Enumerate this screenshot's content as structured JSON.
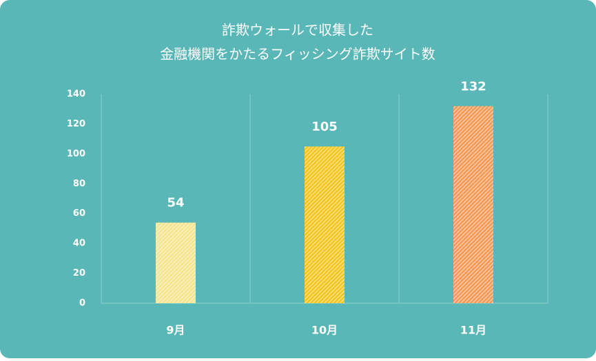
{
  "chart_data": {
    "type": "bar",
    "title": [
      "詐欺ウォールで収集した",
      "金融機関をかたるフィッシング詐欺サイト数"
    ],
    "categories": [
      "9月",
      "10月",
      "11月"
    ],
    "values": [
      54,
      105,
      132
    ],
    "colors": [
      "#f6e48c",
      "#f5c51d",
      "#f49a55"
    ],
    "ylim": [
      0,
      140
    ],
    "yticks": [
      0,
      20,
      40,
      60,
      80,
      100,
      120,
      140
    ],
    "grid": true
  }
}
